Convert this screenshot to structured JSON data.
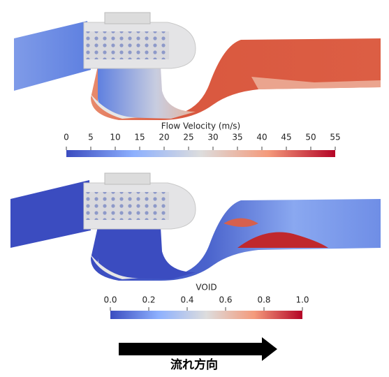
{
  "panels": [
    {
      "colorbar": {
        "title": "Flow Velocity (m/s)",
        "range": [
          0,
          55
        ],
        "ticks": [
          0,
          5,
          10,
          15,
          20,
          25,
          30,
          35,
          40,
          45,
          50,
          55
        ]
      }
    },
    {
      "colorbar": {
        "title": "VOID",
        "range": [
          0,
          1
        ],
        "ticks": [
          {
            "value": 0,
            "label": "0.0"
          },
          {
            "value": 0.2,
            "label": "0.2"
          },
          {
            "value": 0.4,
            "label": "0.4"
          },
          {
            "value": 0.6,
            "label": "0.6"
          },
          {
            "value": 0.8,
            "label": "0.8"
          },
          {
            "value": 1,
            "label": "1.0"
          }
        ]
      }
    }
  ],
  "arrow_label": "流れ方向"
}
